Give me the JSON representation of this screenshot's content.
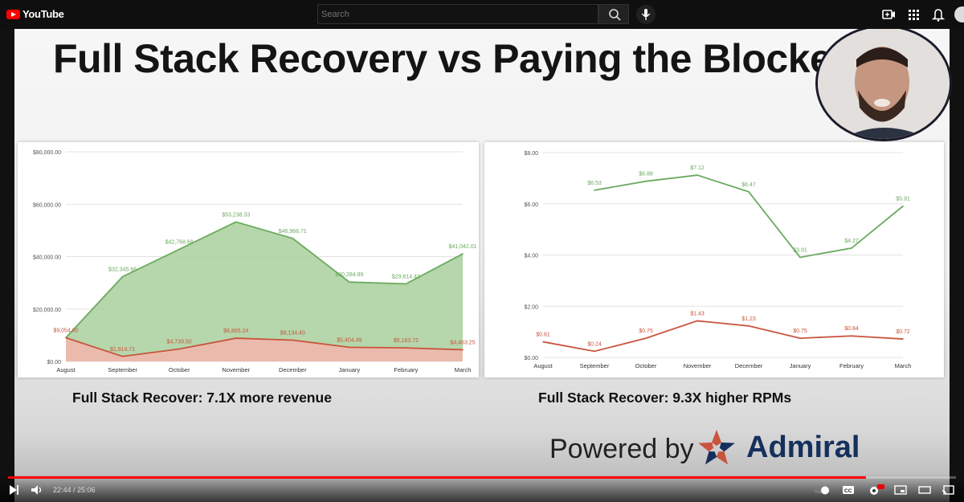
{
  "app": {
    "logo_text": "YouTube"
  },
  "search": {
    "placeholder": "Search"
  },
  "slide": {
    "title": "Full Stack Recovery vs Paying the Blocke",
    "caption_left": "Full Stack Recover: 7.1X more revenue",
    "caption_right": "Full Stack Recover: 9.3X higher RPMs",
    "powered_by": "Powered by",
    "brand": "Admiral"
  },
  "player": {
    "time": "22:44 / 25:06",
    "progress": 0.905
  },
  "colors": {
    "green": "#6aab5f",
    "red": "#c8553d",
    "green_fill": "#a9cf9c",
    "red_fill": "#f0b8ad"
  },
  "chart_data": [
    {
      "type": "area",
      "categories": [
        "August",
        "September",
        "October",
        "November",
        "December",
        "January",
        "February",
        "March"
      ],
      "y_ticks": [
        "$0.00",
        "$20,000.00",
        "$40,000.00",
        "$60,000.00",
        "$80,000.00"
      ],
      "ylim": [
        0,
        80000
      ],
      "series": [
        {
          "values": [
            9054.8,
            32345.66,
            42768.68,
            53238.33,
            46968.71,
            30284.89,
            29614.43,
            41042.01
          ],
          "labels": [
            "",
            "$32,345.66",
            "$42,768.68",
            "$53,238.33",
            "$46,968.71",
            "$30,284.89",
            "$29,614.43",
            "$41,042.01"
          ]
        },
        {
          "values": [
            9054.8,
            1914.71,
            4739.5,
            8865.24,
            8134.4,
            5404.49,
            5163.72,
            4463.25
          ],
          "labels": [
            "$9,054.80",
            "$1,914.71",
            "$4,739.50",
            "$8,865.24",
            "$8,134.40",
            "$5,404.49",
            "$5,163.72",
            "$4,463.25"
          ]
        }
      ]
    },
    {
      "type": "line",
      "categories": [
        "August",
        "September",
        "October",
        "November",
        "December",
        "January",
        "February",
        "March"
      ],
      "y_ticks": [
        "$0.00",
        "$2.00",
        "$4.00",
        "$6.00",
        "$8.00"
      ],
      "ylim": [
        0,
        8
      ],
      "series": [
        {
          "values": [
            null,
            6.53,
            6.88,
            7.12,
            6.47,
            3.91,
            4.27,
            5.91
          ],
          "labels": [
            "",
            "$6.53",
            "$6.88",
            "$7.12",
            "$6.47",
            "$3.91",
            "$4.27",
            "$5.91"
          ]
        },
        {
          "values": [
            0.61,
            0.24,
            0.75,
            1.43,
            1.23,
            0.75,
            0.84,
            0.72
          ],
          "labels": [
            "$0.61",
            "$0.24",
            "$0.75",
            "$1.43",
            "$1.23",
            "$0.75",
            "$0.84",
            "$0.72"
          ]
        }
      ]
    }
  ]
}
